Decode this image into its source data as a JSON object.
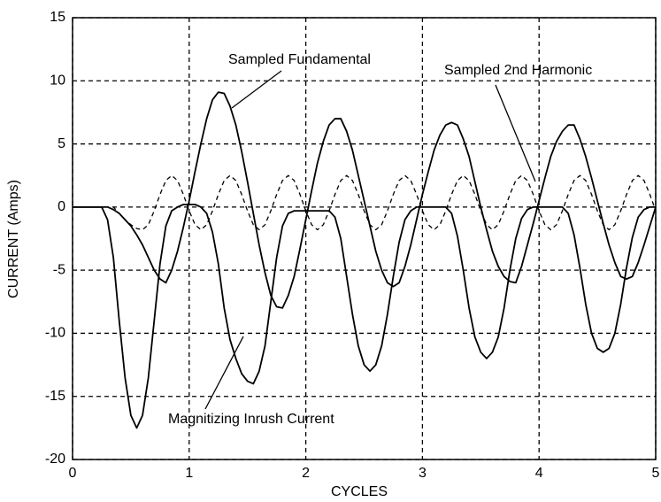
{
  "chart_data": {
    "type": "line",
    "xlabel": "CYCLES",
    "ylabel": "CURRENT (Amps)",
    "x": [
      0,
      0.05,
      0.1,
      0.15,
      0.2,
      0.25,
      0.3,
      0.35,
      0.4,
      0.45,
      0.5,
      0.55,
      0.6,
      0.65,
      0.7,
      0.75,
      0.8,
      0.85,
      0.9,
      0.95,
      1,
      1.05,
      1.1,
      1.15,
      1.2,
      1.25,
      1.3,
      1.35,
      1.4,
      1.45,
      1.5,
      1.55,
      1.6,
      1.65,
      1.7,
      1.75,
      1.8,
      1.85,
      1.9,
      1.95,
      2,
      2.05,
      2.1,
      2.15,
      2.2,
      2.25,
      2.3,
      2.35,
      2.4,
      2.45,
      2.5,
      2.55,
      2.6,
      2.65,
      2.7,
      2.75,
      2.8,
      2.85,
      2.9,
      2.95,
      3,
      3.05,
      3.1,
      3.15,
      3.2,
      3.25,
      3.3,
      3.35,
      3.4,
      3.45,
      3.5,
      3.55,
      3.6,
      3.65,
      3.7,
      3.75,
      3.8,
      3.85,
      3.9,
      3.95,
      4,
      4.05,
      4.1,
      4.15,
      4.2,
      4.25,
      4.3,
      4.35,
      4.4,
      4.45,
      4.5,
      4.55,
      4.6,
      4.65,
      4.7,
      4.75,
      4.8,
      4.85,
      4.9,
      4.95,
      5
    ],
    "series": [
      {
        "name": "Sampled Fundamental",
        "color": "#000000",
        "style": "solid",
        "values": [
          0,
          0,
          0,
          0,
          0,
          0,
          0,
          -0.2,
          -0.5,
          -1,
          -1.5,
          -2.2,
          -3,
          -4,
          -5,
          -5.7,
          -6,
          -5,
          -3.5,
          -1.6,
          0.5,
          2.8,
          5,
          7,
          8.5,
          9.1,
          9,
          8,
          6.5,
          4.4,
          2,
          -0.5,
          -3,
          -5.2,
          -7,
          -7.9,
          -8,
          -7,
          -5.5,
          -3.3,
          -1,
          1.3,
          3.5,
          5.2,
          6.5,
          7,
          7,
          6,
          4.5,
          2.5,
          0.5,
          -1.5,
          -3.5,
          -5,
          -6,
          -6.3,
          -6,
          -4.7,
          -3,
          -1,
          1,
          2.8,
          4.5,
          5.7,
          6.5,
          6.7,
          6.5,
          5.4,
          4,
          2,
          0,
          -1.8,
          -3.5,
          -4.7,
          -5.5,
          -5.9,
          -6,
          -4.7,
          -3,
          -1.3,
          0.5,
          2.3,
          4,
          5.2,
          6,
          6.5,
          6.5,
          5.4,
          4,
          2.3,
          0.5,
          -1.3,
          -3,
          -4.4,
          -5.5,
          -5.7,
          -5.5,
          -4.4,
          -3,
          -1.5,
          0
        ]
      },
      {
        "name": "Sampled 2nd Harmonic",
        "color": "#000000",
        "style": "dashed",
        "values": [
          0,
          0,
          0,
          0,
          0,
          0,
          0,
          0,
          -0.5,
          -1,
          -1.4,
          -1.7,
          -1.8,
          -1.4,
          -0.3,
          1,
          2.1,
          2.5,
          2.1,
          1,
          -0.3,
          -1.4,
          -1.8,
          -1.4,
          -0.3,
          1,
          2.1,
          2.5,
          2.1,
          1,
          -0.3,
          -1.4,
          -1.8,
          -1.4,
          -0.3,
          1,
          2.1,
          2.5,
          2.1,
          1,
          -0.3,
          -1.4,
          -1.8,
          -1.4,
          -0.3,
          1,
          2.1,
          2.5,
          2.1,
          1,
          -0.3,
          -1.4,
          -1.8,
          -1.4,
          -0.3,
          1,
          2.1,
          2.5,
          2.1,
          1,
          -0.3,
          -1.4,
          -1.8,
          -1.4,
          -0.3,
          1,
          2.1,
          2.5,
          2.1,
          1,
          -0.3,
          -1.4,
          -1.8,
          -1.4,
          -0.3,
          1,
          2.1,
          2.5,
          2.1,
          1,
          -0.3,
          -1.4,
          -1.8,
          -1.4,
          -0.3,
          1,
          2.1,
          2.5,
          2.1,
          1,
          -0.3,
          -1.4,
          -1.8,
          -1.4,
          -0.3,
          1,
          2.1,
          2.5,
          2.1,
          1,
          -0.3
        ]
      },
      {
        "name": "Magnitizing Inrush Current",
        "color": "#000000",
        "style": "solid",
        "values": [
          0,
          0,
          0,
          0,
          0,
          0,
          -1,
          -4,
          -9,
          -13.5,
          -16.5,
          -17.5,
          -16.5,
          -13.5,
          -9,
          -4.5,
          -1.5,
          -0.3,
          0,
          0.2,
          0.2,
          0.2,
          0,
          -0.5,
          -2,
          -4.5,
          -8,
          -10.5,
          -12,
          -13.2,
          -13.8,
          -14,
          -13,
          -11,
          -7.5,
          -4,
          -1.5,
          -0.5,
          -0.3,
          -0.3,
          -0.3,
          -0.3,
          -0.3,
          -0.3,
          -0.3,
          -0.8,
          -2.5,
          -5.5,
          -8.5,
          -11,
          -12.5,
          -13,
          -12.5,
          -11,
          -8.5,
          -5.5,
          -2.8,
          -1,
          -0.3,
          0,
          0,
          0,
          0,
          0,
          0,
          -0.5,
          -2.3,
          -5,
          -8,
          -10.3,
          -11.5,
          -12,
          -11.5,
          -10.3,
          -8,
          -5,
          -2.5,
          -0.9,
          -0.2,
          0,
          0,
          0,
          0,
          0,
          0,
          -0.5,
          -2.2,
          -4.8,
          -7.7,
          -10,
          -11.2,
          -11.5,
          -11.2,
          -10,
          -7.7,
          -4.8,
          -2.4,
          -0.8,
          -0.2,
          0,
          0
        ]
      }
    ],
    "xlim": [
      0,
      5
    ],
    "xticks": [
      0,
      1,
      2,
      3,
      4,
      5
    ],
    "ylim": [
      -20,
      15
    ],
    "yticks": [
      -20,
      -15,
      -10,
      -5,
      0,
      5,
      10,
      15
    ],
    "grid": true
  }
}
